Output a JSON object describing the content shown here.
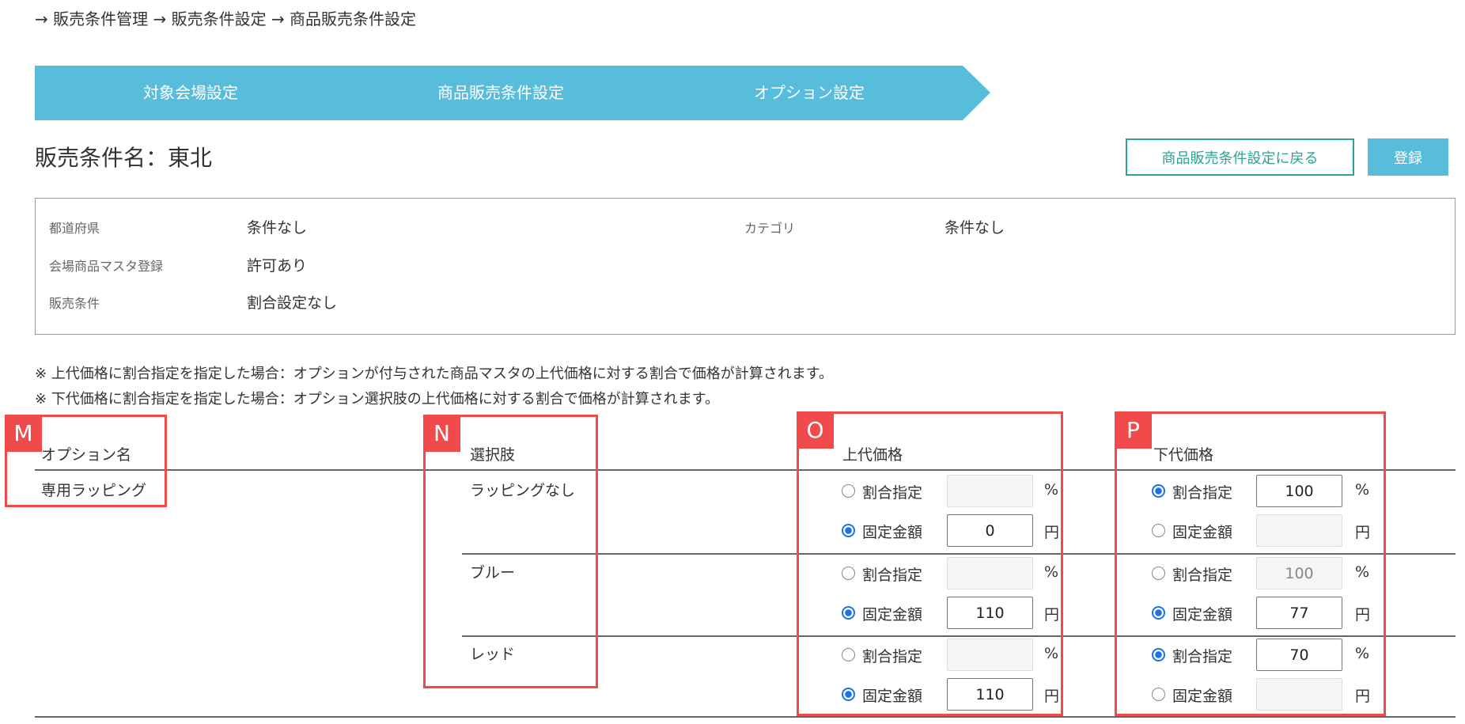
{
  "breadcrumb": "→ 販売条件管理 → 販売条件設定 → 商品販売条件設定",
  "steps": [
    "対象会場設定",
    "商品販売条件設定",
    "オプション設定"
  ],
  "title": "販売条件名：東北",
  "buttons": {
    "back": "商品販売条件設定に戻る",
    "register": "登録"
  },
  "info": {
    "prefecture_label": "都道府県",
    "prefecture_value": "条件なし",
    "category_label": "カテゴリ",
    "category_value": "条件なし",
    "master_label": "会場商品マスタ登録",
    "master_value": "許可あり",
    "condition_label": "販売条件",
    "condition_value": "割合設定なし"
  },
  "notes": [
    "※ 上代価格に割合指定を指定した場合：オプションが付与された商品マスタの上代価格に対する割合で価格が計算されます。",
    "※ 下代価格に割合指定を指定した場合：オプション選択肢の上代価格に対する割合で価格が計算されます。"
  ],
  "table": {
    "headers": [
      "オプション名",
      "選択肢",
      "上代価格",
      "下代価格"
    ],
    "option_name": "専用ラッピング",
    "radio_labels": {
      "ratio": "割合指定",
      "fixed": "固定金額"
    },
    "units": {
      "ratio": "%",
      "fixed": "円"
    },
    "choices": [
      {
        "name": "ラッピングなし",
        "retail": {
          "selected": "fixed",
          "ratio": "",
          "fixed": "0"
        },
        "wholesale": {
          "selected": "ratio",
          "ratio": "100",
          "fixed": ""
        }
      },
      {
        "name": "ブルー",
        "retail": {
          "selected": "fixed",
          "ratio": "",
          "fixed": "110"
        },
        "wholesale": {
          "selected": "fixed",
          "ratio": "100",
          "fixed": "77"
        }
      },
      {
        "name": "レッド",
        "retail": {
          "selected": "fixed",
          "ratio": "",
          "fixed": "110"
        },
        "wholesale": {
          "selected": "ratio",
          "ratio": "70",
          "fixed": ""
        }
      }
    ]
  },
  "annotations": [
    "M",
    "N",
    "O",
    "P"
  ],
  "colors": {
    "step_bar": "#58bcdb",
    "back_button": "#2aa393",
    "annotation": "#f04a4a",
    "radio_selected": "#1a73e8"
  }
}
